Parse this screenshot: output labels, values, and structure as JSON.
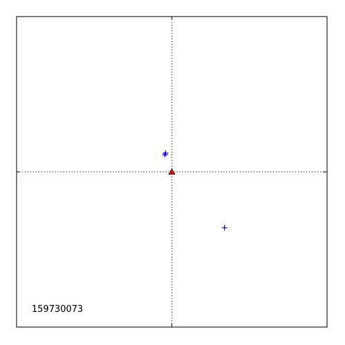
{
  "chart_data": {
    "type": "scatter",
    "annotation": "159730073",
    "xlim": [
      -1,
      1
    ],
    "ylim": [
      -1,
      1
    ],
    "reference_lines": {
      "x": 0,
      "y": 0,
      "style": "dotted"
    },
    "grid": false,
    "series": [
      {
        "marker": "plus",
        "color": "#0000ff",
        "points": [
          {
            "x": -0.04,
            "y": 0.12
          },
          {
            "x": -0.045,
            "y": 0.11
          },
          {
            "x": 0.34,
            "y": -0.36
          }
        ]
      },
      {
        "marker": "triangle",
        "color": "#ff0000",
        "points": [
          {
            "x": 0.0,
            "y": 0.0
          }
        ]
      }
    ]
  }
}
